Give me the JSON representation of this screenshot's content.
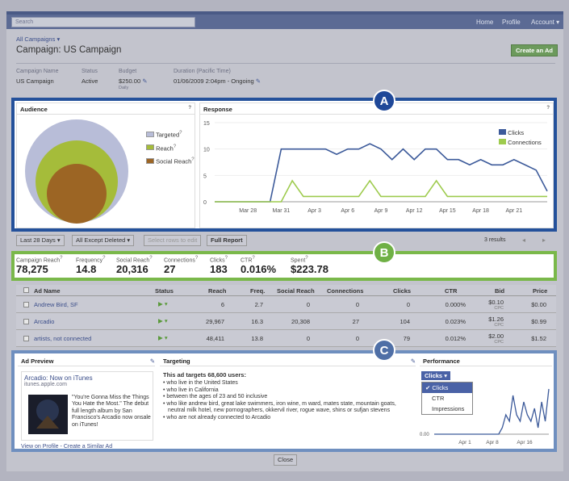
{
  "nav": {
    "search": "Search",
    "home": "Home",
    "profile": "Profile",
    "account": "Account"
  },
  "header": {
    "breadcrumb": "All Campaigns",
    "title": "Campaign: US Campaign",
    "create_btn": "Create an Ad"
  },
  "info": {
    "name_label": "Campaign Name",
    "name_value": "US Campaign",
    "status_label": "Status",
    "status_value": "Active",
    "budget_label": "Budget",
    "budget_value": "$250.00",
    "budget_sub": "Daily",
    "duration_label": "Duration (Pacific Time)",
    "duration_value": "01/06/2009 2:04pm - Ongoing"
  },
  "audience": {
    "title": "Audience",
    "legend": [
      "Targeted",
      "Reach",
      "Social Reach"
    ],
    "colors": [
      "#b8bdd8",
      "#a5bc3a",
      "#9c6524"
    ]
  },
  "response": {
    "title": "Response",
    "legend": [
      "Clicks",
      "Connections"
    ],
    "colors": {
      "clicks": "#3c5a9a",
      "connections": "#9ecb4e"
    }
  },
  "chart_data": {
    "type": "line",
    "ylim": [
      0,
      15
    ],
    "yticks": [
      "15",
      "10",
      "5",
      "0"
    ],
    "xticks": [
      "Mar 28",
      "Mar 31",
      "Apr 3",
      "Apr 6",
      "Apr 9",
      "Apr 12",
      "Apr 15",
      "Apr 18",
      "Apr 21"
    ],
    "series": [
      {
        "name": "Clicks",
        "values": [
          0,
          0,
          0,
          0,
          0,
          0,
          10,
          10,
          10,
          10,
          10,
          9,
          10,
          10,
          11,
          10,
          8,
          10,
          8,
          10,
          10,
          8,
          8,
          7,
          8,
          7,
          7,
          8,
          7,
          6,
          2
        ]
      },
      {
        "name": "Connections",
        "values": [
          0,
          0,
          0,
          0,
          0,
          0,
          0,
          4,
          1,
          1,
          1,
          1,
          1,
          1,
          4,
          1,
          1,
          1,
          1,
          1,
          4,
          1,
          1,
          1,
          1,
          1,
          1,
          1,
          1,
          1,
          1
        ]
      }
    ]
  },
  "markers": {
    "a": "A",
    "b": "B",
    "c": "C"
  },
  "controls": {
    "range": "Last 28 Days",
    "filter": "All Except Deleted",
    "select_rows": "Select rows to edit",
    "full_report": "Full Report",
    "results": "3 results"
  },
  "stats": [
    {
      "label": "Campaign Reach",
      "value": "78,275"
    },
    {
      "label": "Frequency",
      "value": "14.8"
    },
    {
      "label": "Social Reach",
      "value": "20,316"
    },
    {
      "label": "Connections",
      "value": "27"
    },
    {
      "label": "Clicks",
      "value": "183"
    },
    {
      "label": "CTR",
      "value": "0.016%"
    },
    {
      "label": "Spent",
      "value": "$223.78"
    }
  ],
  "table": {
    "headers": [
      "Ad Name",
      "Status",
      "Reach",
      "Freq.",
      "Social Reach",
      "Connections",
      "Clicks",
      "CTR",
      "Bid",
      "Price"
    ],
    "rows": [
      [
        "Andrew Bird, SF",
        "",
        "6",
        "2.7",
        "0",
        "0",
        "0",
        "0.000%",
        "$0.10",
        "$0.00"
      ],
      [
        "Arcadio",
        "",
        "29,967",
        "16.3",
        "20,308",
        "27",
        "104",
        "0.023%",
        "$1.26",
        "$0.99"
      ],
      [
        "artists, not connected",
        "",
        "48,411",
        "13.8",
        "0",
        "0",
        "79",
        "0.012%",
        "$2.00",
        "$1.52"
      ]
    ],
    "bid_unit": "CPC"
  },
  "preview": {
    "title": "Ad Preview",
    "ad_title": "Arcadio: Now on iTunes",
    "ad_url": "itunes.apple.com",
    "ad_body": "\"You're Gonna Miss the Things You Hate the Most.\" The debut full length album by San Francisco's Arcadio now onsale on iTunes!",
    "link1": "View on Profile",
    "sep": " - ",
    "link2": "Create a Similar Ad"
  },
  "targeting": {
    "title": "Targeting",
    "summary": "This ad targets 68,600 users:",
    "items": [
      "who live in the United States",
      "who live in California",
      "between the ages of 23 and 50 inclusive",
      "who like andrew bird, great lake swimmers, iron wine, m ward, mates state, mountain goats, neutral milk hotel, new pornographers, okkervil river, rogue wave, shins or sufjan stevens",
      "who are not already connected to Arcadio"
    ]
  },
  "performance": {
    "title": "Performance",
    "dropdown": "Clicks",
    "options": [
      "Clicks",
      "CTR",
      "Impressions"
    ],
    "y0": "0.00",
    "xticks": [
      "Apr 1",
      "Apr 8",
      "Apr 16"
    ],
    "values": [
      0,
      0,
      0,
      0,
      0,
      0,
      0,
      0,
      0,
      0,
      0,
      0,
      0,
      0,
      0,
      0,
      0,
      0,
      0,
      1,
      3,
      2,
      6,
      3,
      2,
      5,
      3,
      2,
      4,
      1,
      5,
      2,
      7
    ]
  },
  "close": "Close"
}
